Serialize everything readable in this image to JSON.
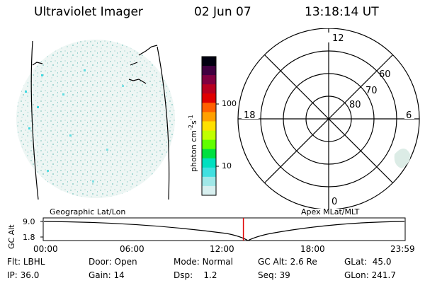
{
  "header": {
    "title": "Ultraviolet Imager",
    "date": "02 Jun 07",
    "time": "13:18:14 UT"
  },
  "colorbar": {
    "unit_label": "photon cm",
    "unit_exp1": "-2",
    "unit_mid": "s",
    "unit_exp2": "-1",
    "ticks": [
      "100",
      "10"
    ],
    "colors": [
      "#000010",
      "#400040",
      "#800040",
      "#b80020",
      "#e00000",
      "#ff6000",
      "#ffa000",
      "#ffe000",
      "#c0ff00",
      "#60ff00",
      "#00e040",
      "#00e0c0",
      "#40e0e0",
      "#a0e8e8",
      "#d8f0f0"
    ]
  },
  "polar_grid": {
    "mlt_labels": {
      "top": "12",
      "left": "18",
      "right": "6",
      "bottom": "0"
    },
    "lat_labels": [
      "60",
      "70",
      "80"
    ]
  },
  "timeline": {
    "left_label": "Geographic Lat/Lon",
    "right_label": "Apex MLat/MLT",
    "axis_label": "GC Alt",
    "y_values": [
      "9.0",
      "1.8"
    ],
    "x_ticks": [
      "00:00",
      "06:00",
      "12:00",
      "18:00",
      "23:59"
    ],
    "current_time_fraction": 0.553,
    "marker_color": "#e00000"
  },
  "status": {
    "row1": [
      {
        "key": "Flt:",
        "value": "LBHL"
      },
      {
        "key": "Door:",
        "value": "Open"
      },
      {
        "key": "Mode:",
        "value": "Normal"
      },
      {
        "key": "GC Alt:",
        "value": "2.6 Re"
      },
      {
        "key": "GLat:",
        "value": "45.0"
      }
    ],
    "row2": [
      {
        "key": "IP:",
        "value": "36.0"
      },
      {
        "key": "Gain:",
        "value": "14"
      },
      {
        "key": "Dsp:",
        "value": "1.2"
      },
      {
        "key": "Seq:",
        "value": "39"
      },
      {
        "key": "GLon:",
        "value": "241.7"
      }
    ]
  }
}
